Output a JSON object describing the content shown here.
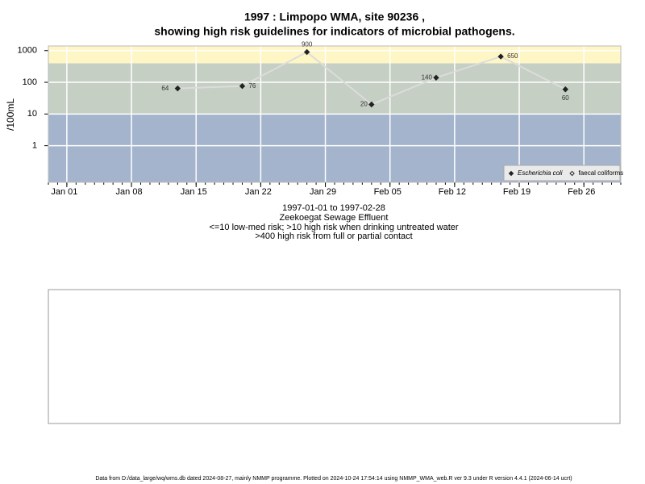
{
  "chart_data": {
    "type": "line",
    "title": [
      "1997 : Limpopo WMA, site 90236 ,",
      "showing high risk guidelines for indicators of microbial pathogens."
    ],
    "subtitle": [
      "1997-01-01 to 1997-02-28",
      "Zeekoegat Sewage Effluent",
      "<=10 low-med risk; >10 high risk when drinking untreated water",
      ">400 high risk from full or partial contact"
    ],
    "y_label": "/100mL",
    "x": [
      "1997-01-13",
      "1997-01-20",
      "1997-01-27",
      "1997-02-03",
      "1997-02-10",
      "1997-02-17",
      "1997-02-24"
    ],
    "series": [
      {
        "name": "Escherichia coli",
        "color": "#222222",
        "line_color": "#dcdcdc",
        "values": [
          64,
          76,
          900,
          20,
          140,
          650,
          60
        ]
      },
      {
        "name": "faecal coliforms",
        "color": "#ffffff",
        "line_color": "#dcdcdc",
        "values": [
          null,
          null,
          null,
          null,
          null,
          null,
          null
        ]
      }
    ],
    "log_y": true,
    "ylim": [
      0.07,
      1400
    ],
    "yticks": [
      1,
      10,
      100,
      1000
    ],
    "xlim": [
      "1996-12-30",
      "1997-03-02"
    ],
    "xticks": [
      {
        "value": "1997-01-01",
        "label": "Jan 01"
      },
      {
        "value": "1997-01-08",
        "label": "Jan 08"
      },
      {
        "value": "1997-01-15",
        "label": "Jan 15"
      },
      {
        "value": "1997-01-22",
        "label": "Jan 22"
      },
      {
        "value": "1997-01-29",
        "label": "Jan 29"
      },
      {
        "value": "1997-02-05",
        "label": "Feb 05"
      },
      {
        "value": "1997-02-12",
        "label": "Feb 12"
      },
      {
        "value": "1997-02-19",
        "label": "Feb 19"
      },
      {
        "value": "1997-02-26",
        "label": "Feb 26"
      }
    ],
    "band_limits": [
      10,
      400
    ],
    "band_colors": [
      "#a4b4cc",
      "#c6cfc4",
      "#fff6c6"
    ],
    "grid": true,
    "legend": "bottom-right",
    "footer": "Data from D:/data_large/wq/wms.db dated 2024-08-27, mainly NMMP programme. Plotted on 2024-10-24 17:54:14 using NMMP_WMA_web.R ver 9.3 under R version 4.4.1 (2024-06-14 ucrt)"
  }
}
